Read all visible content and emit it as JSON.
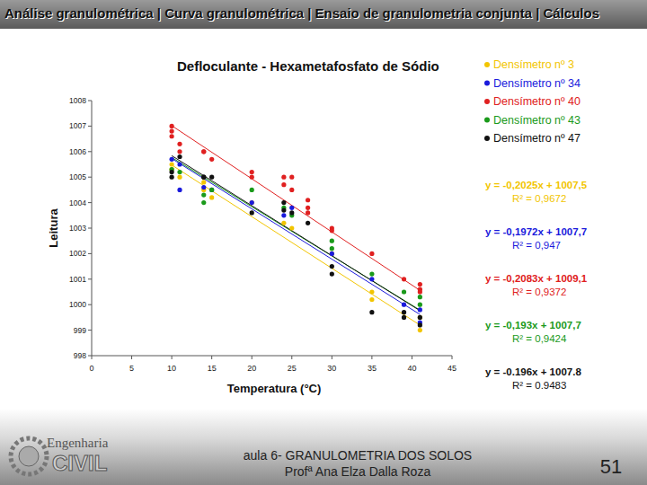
{
  "slide": {
    "header": "Análise granulométrica | Curva granulométrica | Ensaio de granulometria conjunta | Cálculos",
    "logo": [
      "Engenharia",
      "CIVIL"
    ],
    "footer": [
      "aula 6- GRANULOMETRIA DOS SOLOS",
      "Profª Ana Elza Dalla Roza"
    ],
    "page": "51"
  },
  "chart_data": {
    "type": "scatter",
    "title": "Defloculante - Hexametafosfato de Sódio",
    "x_label": "Temperatura (°C)",
    "y_label": "Leitura",
    "marker": "circle",
    "line_style": "solid",
    "grid": false,
    "legend": "right",
    "xlim": [
      0,
      45
    ],
    "xticks": [
      0,
      5,
      10,
      15,
      20,
      25,
      30,
      35,
      40,
      45
    ],
    "ylim": [
      998,
      1008
    ],
    "yticks": [
      998,
      999,
      1000,
      1001,
      1002,
      1003,
      1004,
      1005,
      1006,
      1007,
      1008
    ],
    "series": [
      {
        "name": "Densímetro nº 3",
        "color": "#f2c500",
        "x": [
          10,
          10,
          11,
          14,
          14,
          15,
          20,
          24,
          25,
          30,
          35,
          35,
          41,
          41
        ],
        "values": [
          1005.5,
          1005.3,
          1005,
          1004.8,
          1004.5,
          1004.2,
          1004,
          1003.2,
          1003,
          1002,
          1000.5,
          1000.2,
          999.5,
          999
        ],
        "slope": -0.2025,
        "intercept": 1007.5,
        "equation_label": "y = -0,2025x + 1007,5",
        "r2_label": "R² = 0,9672"
      },
      {
        "name": "Densímetro nº 34",
        "color": "#1a1adc",
        "x": [
          10,
          11,
          11,
          14,
          15,
          20,
          24,
          25,
          30,
          35,
          39,
          41,
          41
        ],
        "values": [
          1005.7,
          1004.5,
          1005.5,
          1004.6,
          1004.5,
          1004,
          1003.5,
          1003.8,
          1002,
          1001,
          1000,
          999.8,
          999.3
        ],
        "slope": -0.1972,
        "intercept": 1007.7,
        "equation_label": "y = -0,1972x + 1007,7",
        "r2_label": "R² = 0,947"
      },
      {
        "name": "Densímetro nº 40",
        "color": "#e02020",
        "x": [
          10,
          10,
          10,
          11,
          11,
          14,
          14,
          15,
          20,
          20,
          24,
          24,
          25,
          25,
          27,
          27,
          27,
          30,
          30,
          35,
          39,
          41,
          41,
          41
        ],
        "values": [
          1007,
          1006.8,
          1006.6,
          1006.3,
          1006,
          1006,
          1006,
          1005.7,
          1005.2,
          1005,
          1005,
          1004.7,
          1005,
          1004.5,
          1004.1,
          1003.8,
          1003.6,
          1003,
          1002.9,
          1002,
          1001,
          1000.8,
          1000.6,
          1000.5
        ],
        "slope": -0.2083,
        "intercept": 1009.1,
        "equation_label": "y = -0,2083x + 1009,1",
        "r2_label": "R² = 0,9372"
      },
      {
        "name": "Densímetro nº 43",
        "color": "#1a9a1a",
        "x": [
          10,
          11,
          14,
          14,
          15,
          20,
          24,
          25,
          30,
          30,
          35,
          39,
          41,
          41
        ],
        "values": [
          1005.3,
          1005.2,
          1004.3,
          1004,
          1004.5,
          1004.5,
          1003.8,
          1003.5,
          1002.5,
          1002.2,
          1001.2,
          1000.5,
          1000.3,
          1000
        ],
        "slope": -0.193,
        "intercept": 1007.7,
        "equation_label": "y = -0,193x + 1007,7",
        "r2_label": "R² = 0,9424"
      },
      {
        "name": "Densímetro nº 47",
        "color": "#111111",
        "x": [
          10,
          10,
          11,
          14,
          14,
          15,
          20,
          24,
          24,
          25,
          27,
          30,
          30,
          35,
          39,
          39,
          41,
          41
        ],
        "values": [
          1005.2,
          1005,
          1005.8,
          1005,
          1005,
          1005,
          1003.6,
          1004,
          1003.7,
          1003.6,
          1003.2,
          1001.2,
          1001.5,
          999.7,
          999.7,
          999.5,
          999.5,
          999.2
        ],
        "slope": -0.196,
        "intercept": 1007.8,
        "equation_label": "y = -0.196x + 1007.8",
        "r2_label": "R² = 0.9483"
      }
    ]
  }
}
